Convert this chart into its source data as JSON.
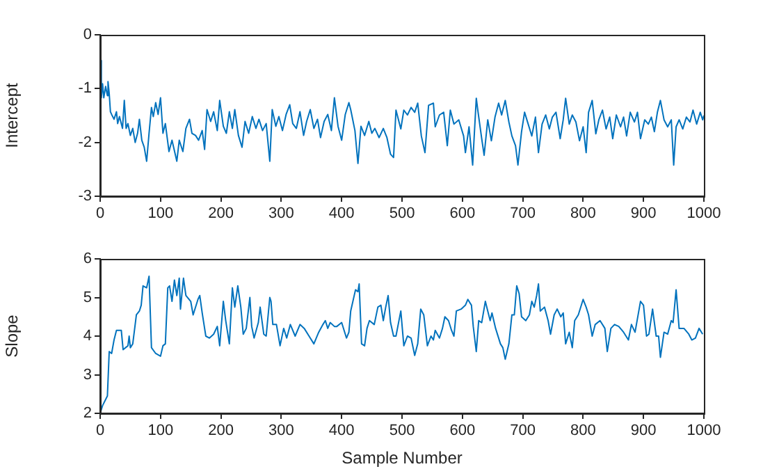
{
  "chart_data": [
    {
      "type": "line",
      "ylabel": "Intercept",
      "xlim": [
        0,
        1000
      ],
      "xticks": [
        0,
        100,
        200,
        300,
        400,
        500,
        600,
        700,
        800,
        900,
        1000
      ],
      "ylim": [
        -3,
        0
      ],
      "yticks": [
        -3,
        -2,
        -1,
        0
      ],
      "grid": false,
      "legend": false,
      "marker": "none",
      "line_style": "solid",
      "series": [
        {
          "color": "#0072bd",
          "x": [
            0,
            2,
            4,
            6,
            9,
            12,
            13,
            15,
            17,
            19,
            23,
            27,
            29,
            32,
            37,
            40,
            43,
            46,
            50,
            54,
            58,
            62,
            65,
            69,
            73,
            77,
            81,
            85,
            88,
            92,
            96,
            100,
            104,
            108,
            114,
            119,
            127,
            131,
            137,
            142,
            148,
            152,
            158,
            163,
            169,
            173,
            177,
            183,
            188,
            194,
            198,
            204,
            209,
            214,
            219,
            223,
            229,
            235,
            240,
            246,
            252,
            258,
            263,
            269,
            275,
            281,
            285,
            291,
            296,
            302,
            308,
            314,
            319,
            325,
            331,
            337,
            342,
            348,
            354,
            360,
            365,
            371,
            377,
            383,
            388,
            394,
            400,
            406,
            412,
            415,
            422,
            427,
            432,
            438,
            445,
            450,
            455,
            462,
            469,
            475,
            481,
            486,
            490,
            498,
            503,
            509,
            515,
            521,
            526,
            532,
            538,
            544,
            552,
            555,
            562,
            569,
            575,
            580,
            586,
            594,
            602,
            605,
            611,
            617,
            623,
            626,
            632,
            636,
            642,
            648,
            654,
            660,
            665,
            671,
            677,
            682,
            688,
            692,
            698,
            703,
            709,
            715,
            721,
            726,
            732,
            738,
            744,
            749,
            755,
            762,
            767,
            771,
            777,
            782,
            788,
            794,
            800,
            805,
            809,
            815,
            821,
            826,
            832,
            838,
            844,
            849,
            855,
            862,
            867,
            872,
            878,
            885,
            890,
            895,
            902,
            908,
            913,
            918,
            923,
            928,
            934,
            940,
            946,
            950,
            954,
            959,
            965,
            971,
            977,
            982,
            988,
            994,
            998,
            1000
          ],
          "values": [
            -0.48,
            -1.17,
            -0.91,
            -1.17,
            -0.96,
            -1.13,
            -0.87,
            -1.09,
            -1.43,
            -1.48,
            -1.57,
            -1.43,
            -1.65,
            -1.52,
            -1.74,
            -1.22,
            -1.74,
            -1.65,
            -1.87,
            -1.74,
            -2.0,
            -1.83,
            -1.57,
            -1.96,
            -2.09,
            -2.35,
            -1.83,
            -1.35,
            -1.52,
            -1.26,
            -1.48,
            -1.17,
            -1.83,
            -1.65,
            -2.17,
            -1.96,
            -2.35,
            -1.96,
            -2.17,
            -1.74,
            -1.57,
            -1.83,
            -1.87,
            -1.96,
            -1.78,
            -2.13,
            -1.39,
            -1.61,
            -1.43,
            -1.78,
            -1.22,
            -1.7,
            -1.83,
            -1.43,
            -1.74,
            -1.39,
            -1.87,
            -2.09,
            -1.61,
            -1.83,
            -1.52,
            -1.74,
            -1.57,
            -1.78,
            -1.65,
            -2.35,
            -1.39,
            -1.7,
            -1.52,
            -1.78,
            -1.48,
            -1.3,
            -1.65,
            -1.74,
            -1.43,
            -1.87,
            -1.61,
            -1.39,
            -1.74,
            -1.57,
            -1.91,
            -1.61,
            -1.48,
            -1.78,
            -1.17,
            -1.7,
            -1.96,
            -1.48,
            -1.26,
            -1.39,
            -1.78,
            -2.39,
            -1.7,
            -1.87,
            -1.61,
            -1.83,
            -1.74,
            -1.91,
            -1.74,
            -1.91,
            -2.22,
            -2.28,
            -1.4,
            -1.75,
            -1.4,
            -1.49,
            -1.35,
            -1.44,
            -1.27,
            -1.88,
            -2.19,
            -1.31,
            -1.27,
            -1.71,
            -1.49,
            -1.44,
            -2.06,
            -1.4,
            -1.66,
            -1.58,
            -1.88,
            -2.19,
            -1.71,
            -2.42,
            -1.18,
            -1.44,
            -1.93,
            -2.24,
            -1.58,
            -1.97,
            -1.53,
            -1.27,
            -1.49,
            -1.22,
            -1.62,
            -1.88,
            -2.06,
            -2.42,
            -1.8,
            -1.44,
            -1.66,
            -1.88,
            -1.53,
            -2.19,
            -1.66,
            -1.49,
            -1.75,
            -1.53,
            -1.44,
            -1.93,
            -1.58,
            -1.18,
            -1.66,
            -1.49,
            -1.62,
            -1.97,
            -1.71,
            -2.19,
            -1.44,
            -1.22,
            -1.84,
            -1.58,
            -1.4,
            -1.75,
            -1.53,
            -1.93,
            -1.49,
            -1.71,
            -1.53,
            -1.88,
            -1.44,
            -1.62,
            -1.44,
            -1.93,
            -1.58,
            -1.66,
            -1.53,
            -1.8,
            -1.44,
            -1.22,
            -1.58,
            -1.71,
            -1.58,
            -2.42,
            -1.71,
            -1.58,
            -1.75,
            -1.53,
            -1.62,
            -1.4,
            -1.66,
            -1.44,
            -1.58,
            -1.5
          ]
        }
      ]
    },
    {
      "type": "line",
      "xlabel": "Sample Number",
      "ylabel": "Slope",
      "xlim": [
        0,
        1000
      ],
      "xticks": [
        0,
        100,
        200,
        300,
        400,
        500,
        600,
        700,
        800,
        900,
        1000
      ],
      "ylim": [
        2,
        6
      ],
      "yticks": [
        2,
        3,
        4,
        5,
        6
      ],
      "grid": false,
      "legend": false,
      "marker": "none",
      "line_style": "solid",
      "series": [
        {
          "color": "#0072bd",
          "x": [
            0,
            4,
            12,
            15,
            19,
            23,
            27,
            35,
            38,
            46,
            48,
            50,
            54,
            58,
            60,
            65,
            68,
            71,
            77,
            81,
            85,
            92,
            100,
            104,
            108,
            112,
            115,
            119,
            123,
            127,
            131,
            133,
            138,
            142,
            150,
            154,
            162,
            165,
            169,
            175,
            181,
            188,
            194,
            198,
            204,
            208,
            214,
            219,
            223,
            228,
            233,
            237,
            242,
            248,
            251,
            255,
            262,
            265,
            271,
            275,
            281,
            283,
            286,
            292,
            298,
            304,
            309,
            315,
            323,
            331,
            338,
            346,
            354,
            362,
            369,
            373,
            377,
            381,
            388,
            392,
            400,
            408,
            412,
            415,
            423,
            427,
            429,
            433,
            438,
            442,
            446,
            454,
            460,
            465,
            469,
            473,
            477,
            481,
            486,
            490,
            498,
            503,
            509,
            515,
            521,
            526,
            531,
            536,
            542,
            548,
            552,
            555,
            562,
            567,
            571,
            577,
            582,
            586,
            590,
            598,
            605,
            609,
            615,
            618,
            623,
            627,
            632,
            638,
            642,
            646,
            649,
            655,
            663,
            667,
            671,
            677,
            682,
            686,
            690,
            694,
            698,
            705,
            711,
            715,
            719,
            723,
            726,
            729,
            736,
            742,
            746,
            752,
            757,
            763,
            767,
            771,
            777,
            782,
            786,
            792,
            800,
            805,
            809,
            815,
            820,
            828,
            836,
            840,
            846,
            852,
            859,
            867,
            875,
            880,
            886,
            895,
            900,
            905,
            909,
            915,
            921,
            925,
            928,
            934,
            940,
            946,
            949,
            954,
            959,
            967,
            975,
            980,
            986,
            992,
            998
          ],
          "values": [
            2.0,
            2.2,
            2.45,
            3.6,
            3.55,
            3.9,
            4.15,
            4.15,
            3.65,
            3.75,
            4.0,
            3.7,
            3.8,
            4.3,
            4.55,
            4.65,
            4.8,
            5.3,
            5.25,
            5.55,
            3.7,
            3.55,
            3.48,
            3.75,
            3.8,
            5.25,
            5.3,
            4.9,
            5.45,
            5.05,
            5.5,
            4.7,
            5.5,
            5.05,
            4.9,
            4.55,
            4.95,
            5.05,
            4.6,
            4.0,
            3.95,
            4.05,
            4.25,
            3.75,
            4.9,
            4.4,
            3.8,
            5.25,
            4.75,
            5.3,
            4.75,
            4.05,
            4.2,
            5.0,
            4.25,
            3.95,
            4.35,
            4.75,
            4.05,
            4.0,
            5.0,
            4.9,
            4.3,
            4.3,
            3.75,
            4.2,
            3.95,
            4.3,
            4.0,
            4.3,
            4.2,
            4.0,
            3.8,
            4.1,
            4.3,
            4.4,
            4.2,
            4.35,
            4.25,
            4.25,
            4.35,
            3.95,
            4.1,
            4.65,
            5.2,
            5.15,
            5.35,
            3.8,
            3.75,
            4.2,
            4.4,
            4.3,
            4.75,
            4.8,
            4.4,
            4.75,
            5.05,
            4.35,
            4.0,
            4.0,
            4.65,
            3.75,
            4.0,
            3.95,
            3.5,
            3.8,
            4.7,
            4.55,
            3.75,
            4.0,
            3.9,
            4.15,
            3.95,
            4.2,
            4.5,
            4.4,
            4.15,
            4.0,
            4.65,
            4.7,
            4.8,
            4.95,
            4.8,
            4.25,
            3.6,
            4.4,
            4.35,
            4.9,
            4.65,
            4.4,
            4.6,
            4.2,
            3.8,
            3.7,
            3.4,
            3.8,
            4.55,
            4.55,
            5.3,
            5.1,
            4.5,
            4.4,
            4.55,
            4.9,
            4.75,
            5.05,
            5.35,
            4.65,
            4.75,
            4.4,
            4.05,
            4.55,
            4.7,
            4.5,
            4.6,
            3.8,
            4.1,
            3.7,
            4.4,
            4.55,
            4.95,
            4.75,
            4.55,
            4.0,
            4.3,
            4.4,
            4.2,
            3.6,
            4.2,
            4.3,
            4.25,
            4.1,
            3.9,
            4.3,
            4.1,
            4.9,
            4.8,
            4.0,
            4.05,
            4.7,
            4.0,
            4.0,
            3.45,
            4.1,
            4.05,
            4.4,
            4.35,
            5.2,
            4.2,
            4.2,
            4.05,
            3.9,
            3.95,
            4.2,
            4.05
          ]
        }
      ]
    }
  ]
}
